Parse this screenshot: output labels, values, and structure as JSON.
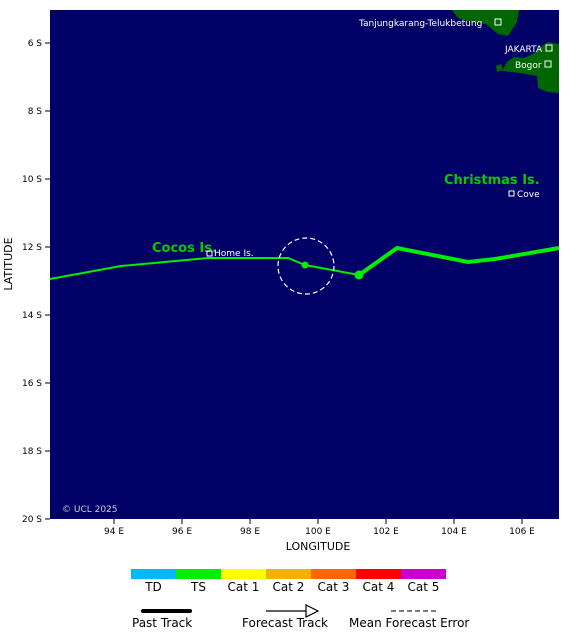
{
  "map": {
    "axes": {
      "x_title": "LONGITUDE",
      "y_title": "LATITUDE",
      "x_ticks": [
        "94 E",
        "96 E",
        "98 E",
        "100 E",
        "102 E",
        "104 E",
        "106 E"
      ],
      "y_ticks": [
        "6 S",
        "8 S",
        "10 S",
        "12 S",
        "14 S",
        "16 S",
        "18 S",
        "20 S"
      ]
    },
    "places": {
      "cocos": "Cocos Is.",
      "home": "Home Is.",
      "christmas": "Christmas Is.",
      "cove": "Cove",
      "tanjung": "Tanjungkarang-Telukbetung",
      "jakarta": "JAKARTA",
      "bogor": "Bogor"
    },
    "copyright": "© UCL 2025",
    "colors": {
      "ocean": "#000066",
      "land": "#006600",
      "track_ts": "#00ff00",
      "label_green": "#00cc00",
      "grid_tick": "#ffffff"
    }
  },
  "legend": {
    "categories": [
      {
        "label": "TD",
        "color": "#00bbf0"
      },
      {
        "label": "TS",
        "color": "#00ee00"
      },
      {
        "label": "Cat 1",
        "color": "#ffff00"
      },
      {
        "label": "Cat 2",
        "color": "#f0b400"
      },
      {
        "label": "Cat 3",
        "color": "#ff6600"
      },
      {
        "label": "Cat 4",
        "color": "#ff0000"
      },
      {
        "label": "Cat 5",
        "color": "#cc00cc"
      }
    ],
    "past_track": "Past Track",
    "forecast_track": "Forecast Track",
    "mean_error": "Mean Forecast Error"
  }
}
